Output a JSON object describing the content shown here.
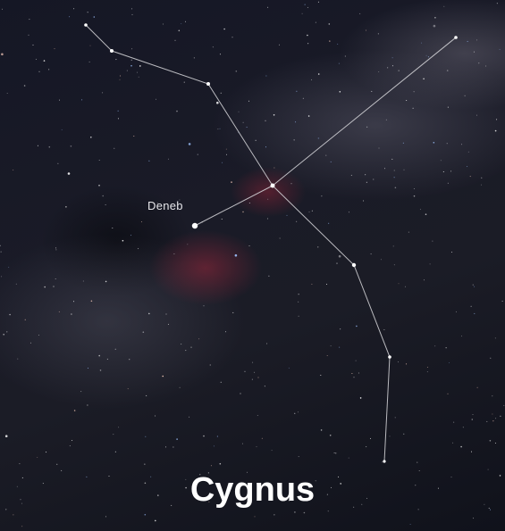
{
  "title": "Cygnus",
  "labels": {
    "deneb": "Deneb"
  },
  "colors": {
    "line": "#d8d8dc",
    "label": "#e6e6ea",
    "title": "#ffffff"
  }
}
